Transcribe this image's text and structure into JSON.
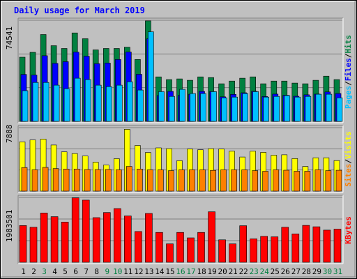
{
  "chart_data": {
    "type": "bar",
    "title": "Daily usage for March 2019",
    "days": [
      "1",
      "2",
      "3",
      "4",
      "5",
      "6",
      "7",
      "8",
      "9",
      "10",
      "11",
      "12",
      "13",
      "14",
      "15",
      "16",
      "17",
      "18",
      "19",
      "20",
      "21",
      "22",
      "23",
      "24",
      "25",
      "26",
      "27",
      "28",
      "29",
      "30",
      "31"
    ],
    "weekend_days": [
      "3",
      "9",
      "10",
      "16",
      "17",
      "23",
      "24",
      "30",
      "31"
    ],
    "panels": [
      {
        "id": "top",
        "max_label": "74541",
        "ylim": [
          0,
          74541
        ],
        "series": [
          {
            "name": "Hits",
            "color": "#008040",
            "values": [
              47300,
              50900,
              64000,
              55800,
              53700,
              65200,
              60900,
              52700,
              53700,
              53700,
              54700,
              45600,
              74100,
              32800,
              30800,
              31300,
              30300,
              32800,
              32300,
              27700,
              29700,
              31800,
              32800,
              27700,
              29700,
              29700,
              28200,
              27700,
              30300,
              33300,
              30800
            ]
          },
          {
            "name": "Files",
            "color": "#0000ff",
            "values": [
              34600,
              34100,
              48400,
              42700,
              44000,
              51000,
              48000,
              42500,
              43000,
              45600,
              51100,
              34700,
              60900,
              19000,
              22100,
              19200,
              20000,
              22100,
              22000,
              18100,
              19900,
              21100,
              22200,
              18300,
              20100,
              19300,
              18500,
              19600,
              20100,
              21700,
              20500
            ]
          },
          {
            "name": "Pages",
            "color": "#00c0ff",
            "values": [
              22600,
              28700,
              28700,
              26700,
              24100,
              31800,
              30800,
              26700,
              25600,
              26700,
              29200,
              23100,
              66000,
              21900,
              18400,
              23600,
              20500,
              20500,
              21900,
              17400,
              17900,
              20500,
              21900,
              17900,
              18400,
              19000,
              17900,
              18400,
              20000,
              20000,
              17400
            ]
          }
        ]
      },
      {
        "id": "middle",
        "max_label": "7888",
        "ylim": [
          0,
          7888
        ],
        "series": [
          {
            "name": "Visits",
            "color": "#ffff00",
            "values": [
              6130,
              6360,
              6470,
              5730,
              4880,
              4660,
              4360,
              3600,
              3230,
              4030,
              7680,
              5670,
              4800,
              5370,
              5280,
              3780,
              5230,
              5140,
              5280,
              5230,
              4960,
              4240,
              4960,
              4820,
              4460,
              4520,
              4050,
              3060,
              4140,
              4140,
              3800
            ]
          },
          {
            "name": "Sites",
            "color": "#ff8000",
            "values": [
              2930,
              2650,
              2950,
              2800,
              2750,
              2750,
              2690,
              2680,
              2700,
              2650,
              3070,
              2750,
              2650,
              2650,
              2550,
              2650,
              2650,
              2650,
              2580,
              2650,
              2650,
              2650,
              2550,
              2470,
              2650,
              2600,
              2470,
              2470,
              2650,
              2550,
              2590
            ]
          }
        ]
      },
      {
        "id": "bottom",
        "max_label": "1983501",
        "ylim": [
          0,
          1983501
        ],
        "series": [
          {
            "name": "KBytes",
            "color": "#ff0000",
            "values": [
              1122000,
              1071000,
              1506000,
              1395000,
              1231000,
              1968000,
              1901000,
              1366000,
              1521000,
              1642000,
              1417000,
              941000,
              1492000,
              912000,
              564000,
              912000,
              747000,
              912000,
              1545000,
              686000,
              564000,
              1118000,
              716000,
              793000,
              779000,
              1071000,
              868000,
              1129000,
              1085000,
              983000,
              1013000
            ]
          }
        ]
      }
    ],
    "right_labels": {
      "top": [
        {
          "text": "Pages",
          "color": "#00c0ff"
        },
        {
          "text": "/",
          "color": "#000000"
        },
        {
          "text": "Files",
          "color": "#0000ff"
        },
        {
          "text": "/",
          "color": "#000000"
        },
        {
          "text": "Hits",
          "color": "#008040"
        }
      ],
      "middle": [
        {
          "text": "Sites",
          "color": "#ff8000"
        },
        {
          "text": "/",
          "color": "#000000"
        },
        {
          "text": "Visits",
          "color": "#ffff00"
        }
      ],
      "bottom": [
        {
          "text": "KBytes",
          "color": "#ff0000"
        }
      ]
    },
    "colors": {
      "background": "#c0c0c0",
      "plot_background": "#c0c0c0",
      "grid": "#808080",
      "title": "#0000ff",
      "weekday_label": "#000000",
      "weekend_label": "#008040"
    }
  }
}
